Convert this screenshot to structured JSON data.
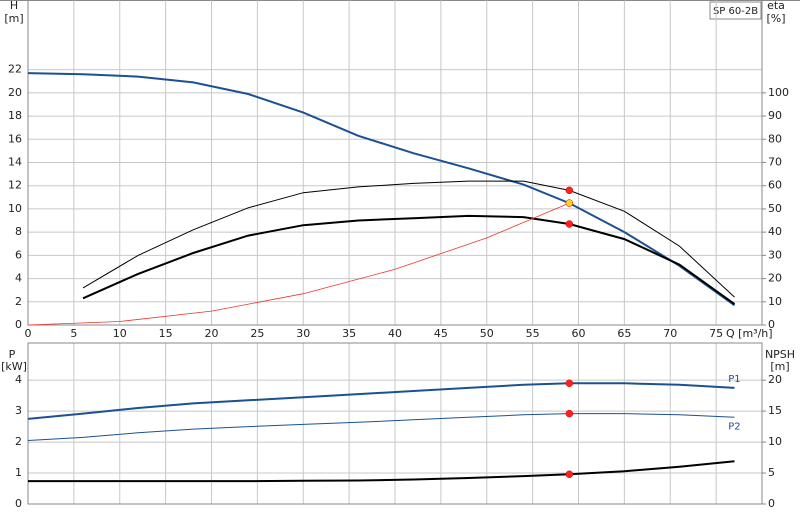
{
  "chart_data": [
    {
      "type": "line",
      "title": "SP 60-2B",
      "y_label": "H",
      "y_unit": "[m]",
      "y2_label": "eta",
      "y2_unit": "[%]",
      "x_label": "Q [m³/h]",
      "xlim": [
        0,
        80
      ],
      "xticks": [
        0,
        5,
        10,
        15,
        20,
        25,
        30,
        35,
        40,
        45,
        50,
        55,
        60,
        65,
        70,
        75
      ],
      "ylim": [
        0,
        28
      ],
      "yticks": [
        0,
        2,
        4,
        6,
        8,
        10,
        12,
        14,
        16,
        18,
        20,
        22
      ],
      "y2lim": [
        0,
        140
      ],
      "y2ticks": [
        0,
        10,
        20,
        30,
        40,
        50,
        60,
        70,
        80,
        90,
        100
      ],
      "grid": true,
      "series": [
        {
          "color": "#1b5192",
          "line_width": 2,
          "axis": "y",
          "x": [
            0,
            6,
            12,
            18,
            24,
            30,
            36,
            42,
            48,
            54,
            59,
            65,
            71,
            77
          ],
          "values": [
            21.7,
            21.6,
            21.4,
            20.9,
            19.9,
            18.3,
            16.3,
            14.8,
            13.5,
            12.1,
            10.5,
            8.0,
            5.1,
            1.7
          ]
        },
        {
          "color": "#000000",
          "line_width": 1,
          "axis": "y2",
          "x": [
            6,
            12,
            18,
            24,
            30,
            36,
            42,
            48,
            54,
            59,
            65,
            71,
            77
          ],
          "values": [
            16,
            30,
            41,
            50.5,
            57,
            59.5,
            61,
            62,
            62,
            58,
            49,
            34,
            12
          ]
        },
        {
          "color": "#000000",
          "line_width": 2,
          "axis": "y2",
          "x": [
            6,
            12,
            18,
            24,
            30,
            36,
            42,
            48,
            54,
            59,
            65,
            71,
            77
          ],
          "values": [
            11.5,
            22,
            31,
            38.5,
            43,
            45,
            46,
            47,
            46.5,
            43.5,
            37,
            26,
            9
          ]
        },
        {
          "color": "#e8372e",
          "line_width": 0.8,
          "axis": "y",
          "x": [
            0,
            10,
            20,
            30,
            40,
            50,
            59
          ],
          "values": [
            0,
            0.3,
            1.2,
            2.7,
            4.8,
            7.5,
            10.5
          ]
        }
      ],
      "points": [
        {
          "x": 59,
          "y": 11.6,
          "color": "#ff2020"
        },
        {
          "x": 59,
          "y": 10.5,
          "color": "#ffd21f"
        },
        {
          "x": 59,
          "y": 8.7,
          "color": "#ff2020"
        }
      ]
    },
    {
      "type": "line",
      "y_label": "P",
      "y_unit": "[kW]",
      "y2_label": "NPSH",
      "y2_unit": "[m]",
      "xlim": [
        0,
        80
      ],
      "ylim": [
        0,
        5.2
      ],
      "yticks": [
        0,
        1,
        2,
        3,
        4
      ],
      "y2lim": [
        0,
        26
      ],
      "y2ticks": [
        0,
        5,
        10,
        15,
        20
      ],
      "grid": true,
      "series": [
        {
          "name": "P1",
          "color": "#1b5192",
          "line_width": 2,
          "axis": "y",
          "x": [
            0,
            6,
            12,
            18,
            24,
            30,
            36,
            42,
            48,
            54,
            59,
            65,
            71,
            77
          ],
          "values": [
            2.75,
            2.92,
            3.1,
            3.25,
            3.35,
            3.45,
            3.55,
            3.65,
            3.75,
            3.85,
            3.9,
            3.9,
            3.85,
            3.75
          ]
        },
        {
          "name": "P2",
          "color": "#1b5192",
          "line_width": 1,
          "axis": "y",
          "x": [
            0,
            6,
            12,
            18,
            24,
            30,
            36,
            42,
            48,
            54,
            59,
            65,
            71,
            77
          ],
          "values": [
            2.05,
            2.15,
            2.3,
            2.42,
            2.5,
            2.57,
            2.64,
            2.72,
            2.8,
            2.88,
            2.92,
            2.92,
            2.88,
            2.8
          ]
        },
        {
          "color": "#000000",
          "line_width": 2,
          "axis": "y2",
          "x": [
            0,
            6,
            12,
            18,
            24,
            30,
            36,
            42,
            48,
            54,
            59,
            65,
            71,
            77
          ],
          "values": [
            3.7,
            3.7,
            3.7,
            3.7,
            3.7,
            3.75,
            3.8,
            3.95,
            4.2,
            4.5,
            4.8,
            5.3,
            6.0,
            6.9
          ]
        }
      ],
      "points": [
        {
          "x": 59,
          "y": 3.9,
          "color": "#ff2020"
        },
        {
          "x": 59,
          "y": 2.92,
          "color": "#ff2020"
        },
        {
          "x": 59,
          "y": 4.8,
          "color": "#ff2020",
          "axis": "y2"
        }
      ]
    }
  ]
}
